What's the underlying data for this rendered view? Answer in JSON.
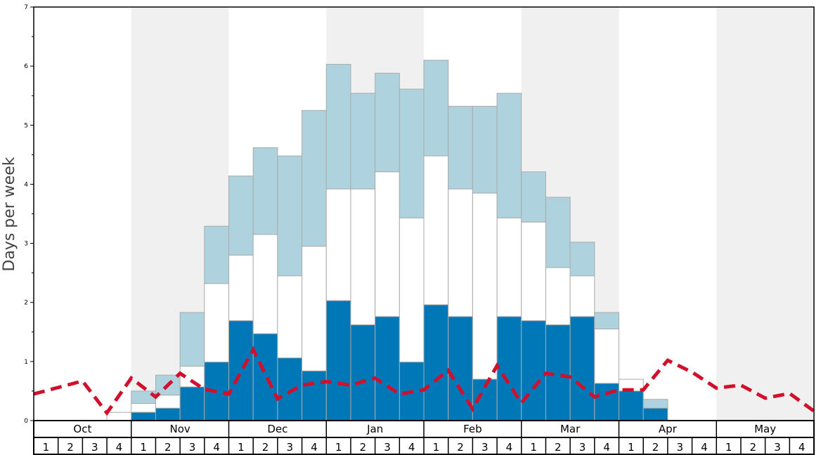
{
  "chart_data": {
    "type": "bar",
    "subtype": "stacked-bar-with-line",
    "ylabel": "Days per week",
    "ylim": [
      0,
      7
    ],
    "yticks": [
      "0",
      "1",
      "2",
      "3",
      "4",
      "5",
      "6",
      "7"
    ],
    "months": [
      "Oct",
      "Nov",
      "Dec",
      "Jan",
      "Feb",
      "Mar",
      "Apr",
      "May"
    ],
    "week_labels": [
      "1",
      "2",
      "3",
      "4"
    ],
    "shaded_months": [
      "Nov",
      "Jan",
      "Mar",
      "May"
    ],
    "colors": {
      "blue": "#0077b6",
      "white": "#ffffff",
      "lightblue": "#aed3df",
      "line": "#d0102c",
      "shade": "#f0f0f0"
    },
    "series": [
      {
        "name": "blue",
        "values": [
          0,
          0,
          0,
          0,
          0.14,
          0.21,
          0.57,
          0.99,
          1.69,
          1.47,
          1.06,
          0.84,
          2.03,
          1.62,
          1.76,
          0.99,
          1.96,
          1.76,
          0.7,
          1.76,
          1.69,
          1.62,
          1.76,
          0.63,
          0.5,
          0.21,
          0,
          0,
          0,
          0,
          0,
          0
        ]
      },
      {
        "name": "white",
        "cumulative_top": [
          0,
          0,
          0,
          0.14,
          0.29,
          0.43,
          0.92,
          2.32,
          2.8,
          3.15,
          2.45,
          2.95,
          3.92,
          3.92,
          4.21,
          3.43,
          4.48,
          3.92,
          3.85,
          3.43,
          3.36,
          2.59,
          2.45,
          1.55,
          0.7,
          0.21,
          0,
          0,
          0,
          0,
          0,
          0
        ]
      },
      {
        "name": "lightblue",
        "cumulative_top": [
          0,
          0,
          0,
          0.14,
          0.5,
          0.77,
          1.83,
          3.29,
          4.14,
          4.62,
          4.48,
          5.25,
          6.03,
          5.54,
          5.88,
          5.61,
          6.1,
          5.32,
          5.32,
          5.54,
          4.21,
          3.78,
          3.02,
          1.83,
          0.7,
          0.36,
          0,
          0,
          0,
          0,
          0,
          0
        ]
      }
    ],
    "line": {
      "name": "dashed average",
      "values_at_week_boundaries": [
        0.45,
        0.56,
        0.67,
        0.13,
        0.72,
        0.4,
        0.8,
        0.53,
        0.45,
        1.2,
        0.37,
        0.6,
        0.66,
        0.6,
        0.72,
        0.45,
        0.52,
        0.85,
        0.2,
        0.93,
        0.3,
        0.8,
        0.74,
        0.4,
        0.52,
        0.52,
        1.02,
        0.82,
        0.55,
        0.6,
        0.38,
        0.46,
        0.16
      ]
    }
  }
}
